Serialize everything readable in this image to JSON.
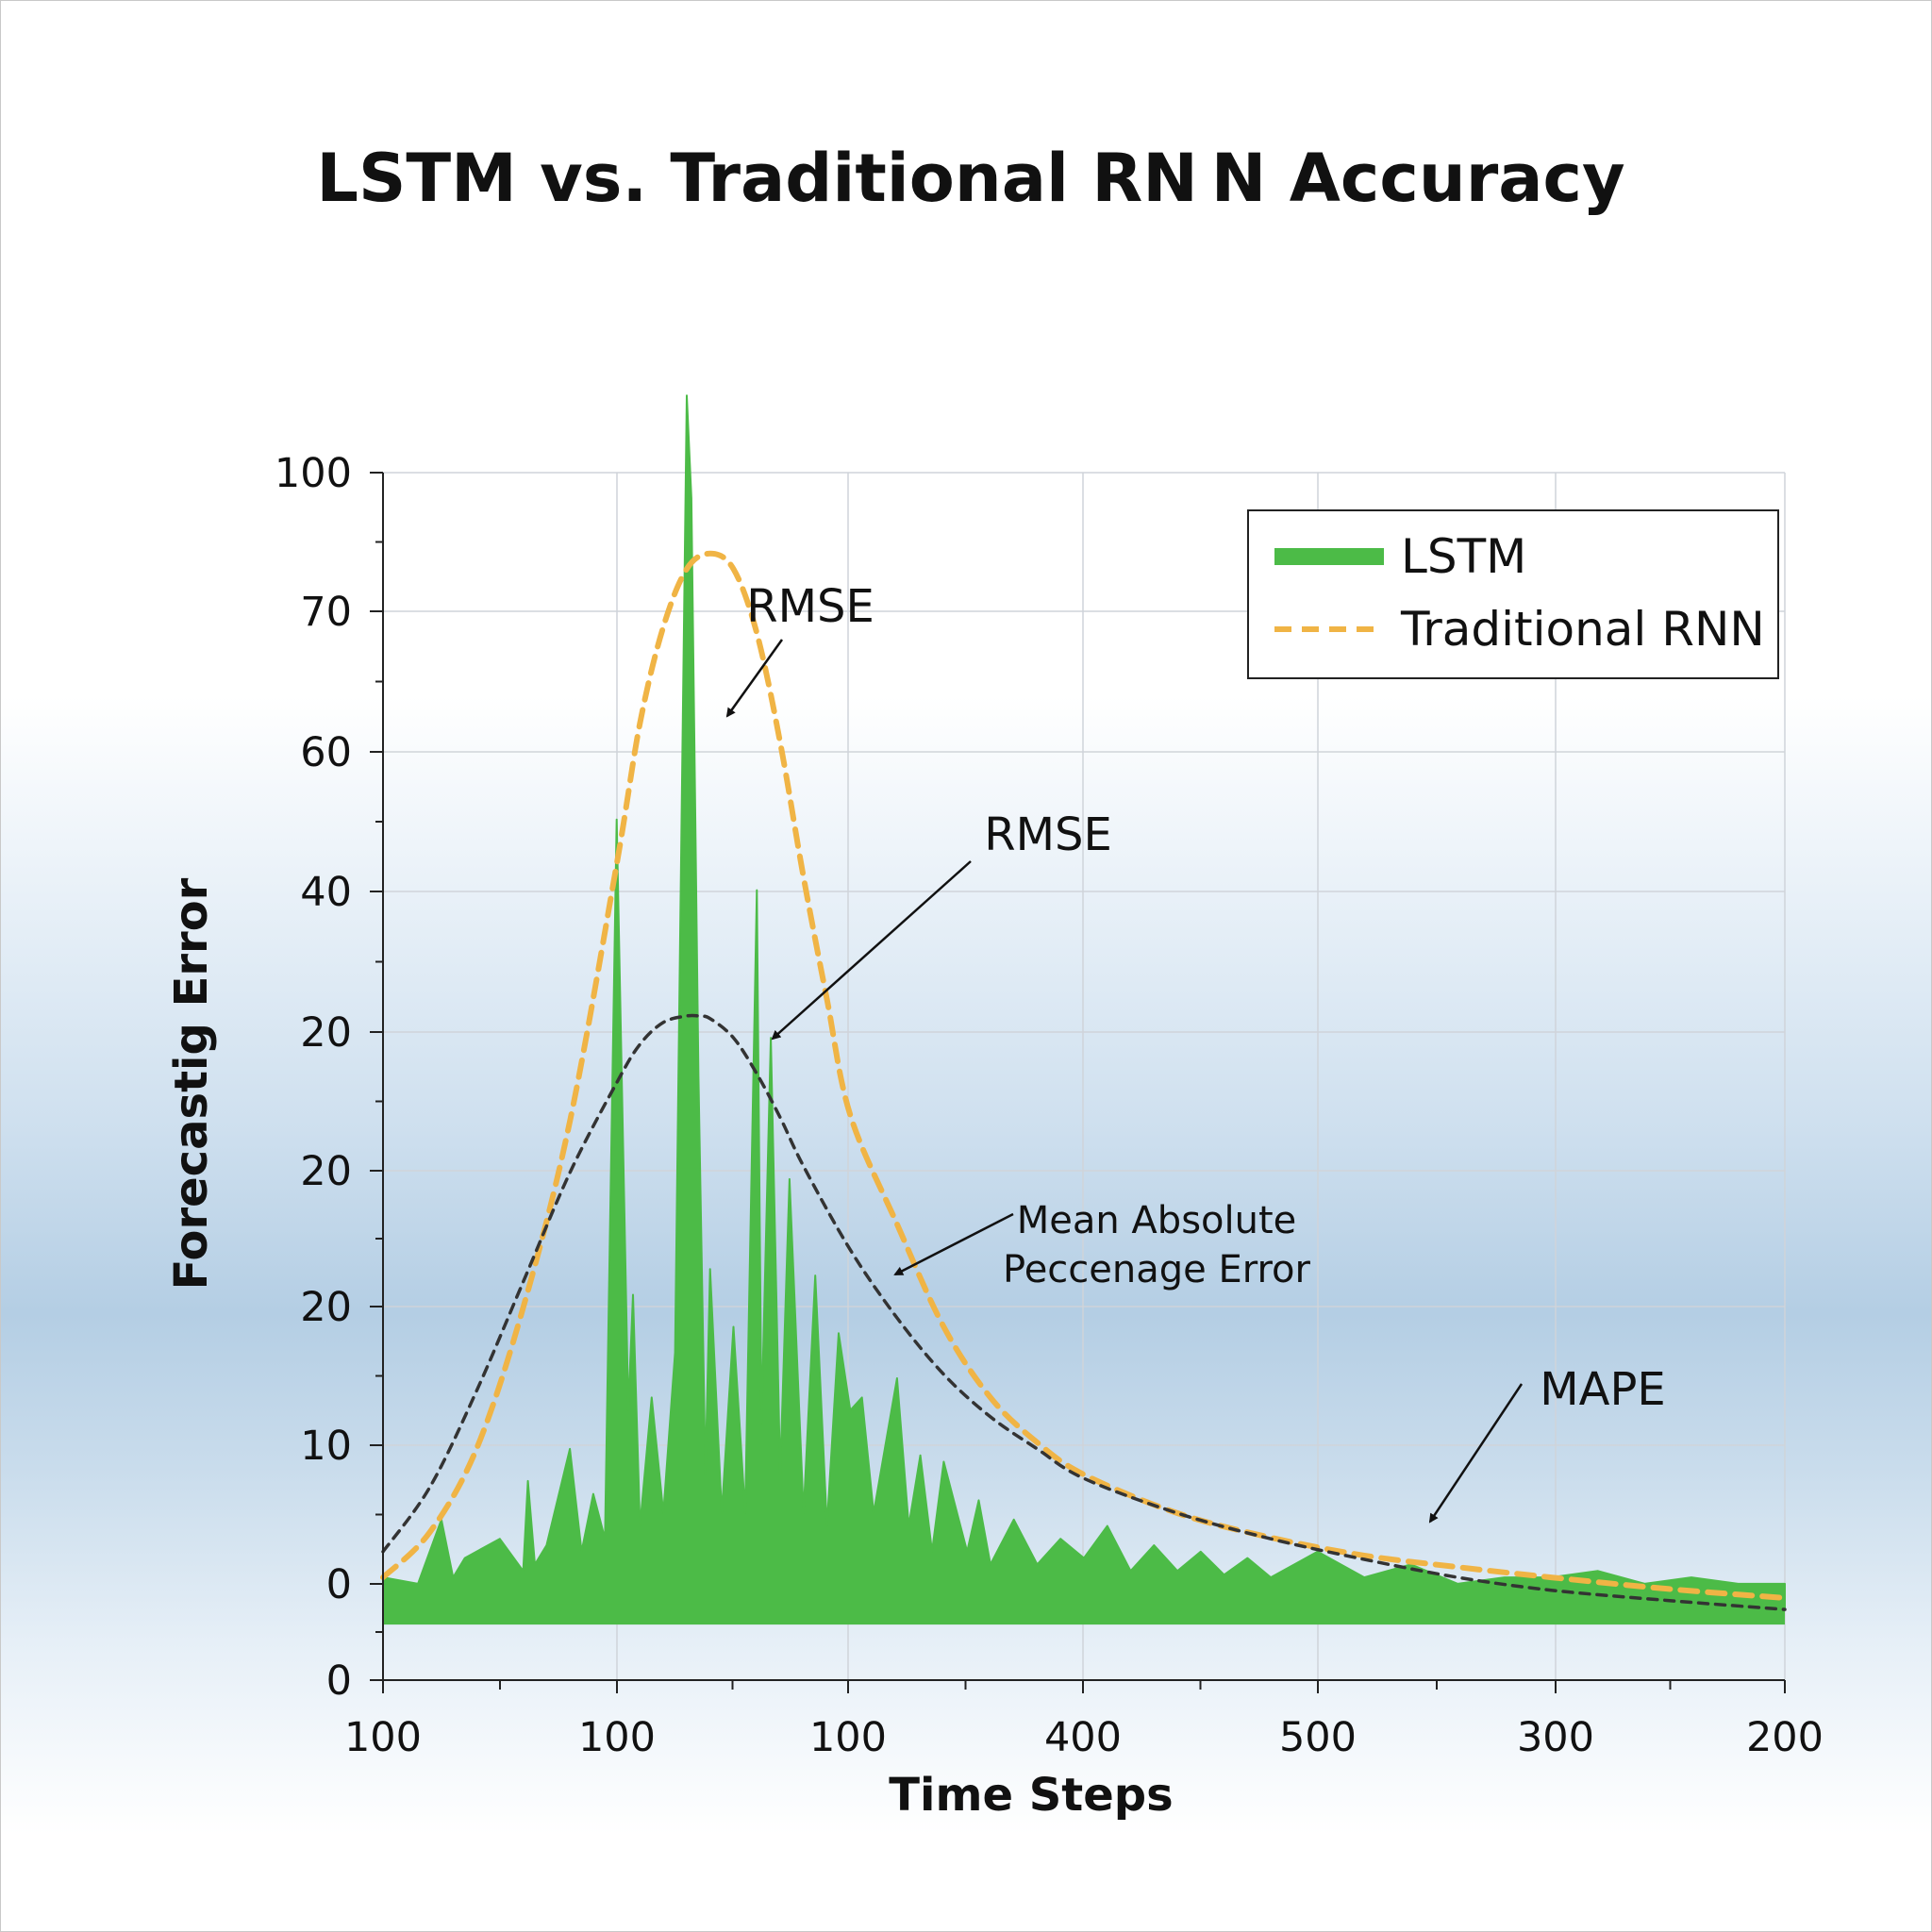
{
  "chart_data": {
    "type": "line",
    "title": "LSTM vs. Traditional RN N  Accuracy",
    "xlabel": "Time Steps",
    "ylabel": "Forecastig Error",
    "x_tick_labels": [
      "100",
      "100",
      "100",
      "400",
      "500",
      "300",
      "200"
    ],
    "y_tick_labels": [
      "0",
      "0",
      "10",
      "20",
      "20",
      "20",
      "40",
      "60",
      "70",
      "100"
    ],
    "grid": true,
    "legend_position": "top-right",
    "legend": [
      {
        "label": "LSTM",
        "color": "#4cbb47",
        "style": "solid"
      },
      {
        "label": "Traditional RNN",
        "color": "#f0b445",
        "style": "dashed"
      }
    ],
    "annotations": [
      {
        "text": "RMSE",
        "target": "Traditional RNN peak"
      },
      {
        "text": "RMSE",
        "target": "LSTM spikes"
      },
      {
        "text": "Mean Absolute",
        "text2": "Peccenage Error",
        "target": "dark dashed curve"
      },
      {
        "text": "MAPE",
        "target": "tail of curves"
      }
    ],
    "x_domain": [
      0,
      6
    ],
    "y_domain": [
      -0.7,
      8.7
    ],
    "series": [
      {
        "name": "Traditional RNN",
        "color": "#f0b445",
        "style": "dashed",
        "x": [
          0,
          0.2,
          0.4,
          0.6,
          0.8,
          1.0,
          1.1,
          1.2,
          1.3,
          1.4,
          1.5,
          1.6,
          1.7,
          1.8,
          1.9,
          2.0,
          2.2,
          2.4,
          2.6,
          2.8,
          3.0,
          3.4,
          3.8,
          4.2,
          4.6,
          5.0,
          5.5,
          6.0
        ],
        "y": [
          0.1,
          0.45,
          1.1,
          2.2,
          3.65,
          5.65,
          6.75,
          7.5,
          7.95,
          8.07,
          7.95,
          7.45,
          6.6,
          5.55,
          4.6,
          3.7,
          2.85,
          2.05,
          1.5,
          1.15,
          0.9,
          0.6,
          0.41,
          0.27,
          0.18,
          0.1,
          0.01,
          -0.06
        ]
      },
      {
        "name": "",
        "color": "#333333",
        "style": "dashed",
        "x": [
          0,
          0.2,
          0.4,
          0.6,
          0.8,
          1.0,
          1.1,
          1.2,
          1.3,
          1.35,
          1.4,
          1.5,
          1.6,
          1.7,
          1.8,
          2.0,
          2.2,
          2.4,
          2.6,
          2.8,
          3.0,
          3.4,
          3.8,
          4.2,
          4.6,
          5.0,
          5.5,
          6.0
        ],
        "y": [
          0.3,
          0.8,
          1.55,
          2.4,
          3.25,
          3.95,
          4.25,
          4.42,
          4.47,
          4.47,
          4.45,
          4.3,
          4.02,
          3.68,
          3.3,
          2.65,
          2.12,
          1.68,
          1.35,
          1.1,
          0.87,
          0.6,
          0.4,
          0.24,
          0.1,
          0.0,
          -0.08,
          -0.15
        ]
      },
      {
        "name": "LSTM",
        "color": "#4cbb47",
        "style": "area",
        "baseline": -0.15,
        "x": [
          0,
          0.15,
          0.25,
          0.3,
          0.35,
          0.5,
          0.6,
          0.62,
          0.65,
          0.7,
          0.8,
          0.85,
          0.9,
          0.95,
          1.0,
          1.05,
          1.07,
          1.1,
          1.15,
          1.2,
          1.25,
          1.3,
          1.32,
          1.35,
          1.38,
          1.4,
          1.45,
          1.5,
          1.55,
          1.6,
          1.62,
          1.66,
          1.7,
          1.74,
          1.8,
          1.85,
          1.9,
          1.95,
          2.0,
          2.05,
          2.1,
          2.2,
          2.25,
          2.3,
          2.35,
          2.4,
          2.5,
          2.55,
          2.6,
          2.7,
          2.8,
          2.9,
          3.0,
          3.1,
          3.2,
          3.3,
          3.4,
          3.5,
          3.6,
          3.7,
          3.8,
          4.0,
          4.2,
          4.4,
          4.6,
          4.8,
          5.0,
          5.2,
          5.4,
          5.6,
          5.8,
          6.0
        ],
        "y": [
          0.1,
          0.05,
          0.55,
          0.1,
          0.25,
          0.4,
          0.15,
          0.85,
          0.2,
          0.35,
          1.1,
          0.3,
          0.75,
          0.4,
          6.0,
          1.4,
          2.3,
          0.5,
          1.5,
          0.6,
          1.85,
          9.3,
          8.5,
          4.0,
          0.9,
          2.5,
          0.6,
          2.05,
          0.6,
          5.45,
          1.3,
          4.3,
          0.9,
          3.2,
          0.6,
          2.45,
          0.5,
          2.0,
          1.4,
          1.5,
          0.6,
          1.65,
          0.5,
          1.05,
          0.3,
          1.0,
          0.3,
          0.7,
          0.2,
          0.55,
          0.2,
          0.4,
          0.25,
          0.5,
          0.15,
          0.35,
          0.15,
          0.3,
          0.12,
          0.25,
          0.1,
          0.3,
          0.1,
          0.2,
          0.05,
          0.1,
          0.1,
          0.15,
          0.05,
          0.1,
          0.05,
          0.05
        ]
      }
    ]
  }
}
